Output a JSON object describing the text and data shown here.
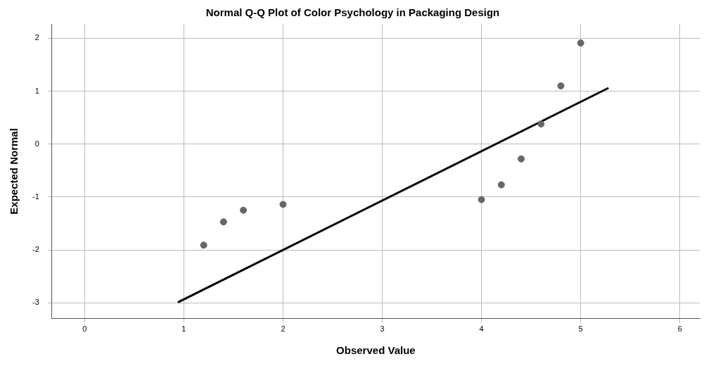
{
  "chart_data": {
    "type": "scatter",
    "title": "Normal Q-Q Plot of Color Psychology in Packaging Design",
    "xlabel": "Observed Value",
    "ylabel": "Expected Normal",
    "xlim": [
      -0.33,
      6.2
    ],
    "xticks": [
      0,
      1,
      2,
      3,
      4,
      5,
      6
    ],
    "ylim": [
      -3.3,
      2.27
    ],
    "yticks": [
      -3,
      -2,
      -1,
      0,
      1,
      2
    ],
    "grid": true,
    "legend": false,
    "marker": "circle",
    "series": [
      {
        "type": "scatter",
        "color": "#666666",
        "x": [
          1.2,
          1.4,
          1.6,
          2.0,
          4.0,
          4.2,
          4.4,
          4.6,
          4.8,
          5.0
        ],
        "values": [
          -1.91,
          -1.47,
          -1.25,
          -1.14,
          -1.05,
          -0.77,
          -0.28,
          0.38,
          1.1,
          1.91
        ]
      },
      {
        "type": "line",
        "color": "#000000",
        "x": [
          0.94,
          5.28
        ],
        "values": [
          -2.99,
          1.06
        ],
        "marker": "none"
      }
    ]
  }
}
